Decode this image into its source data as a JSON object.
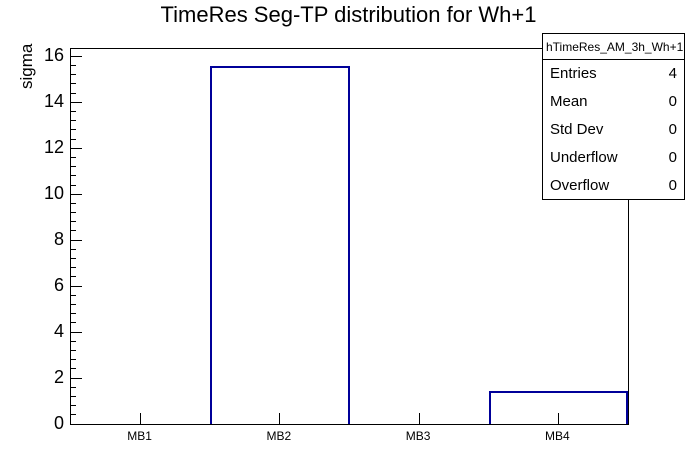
{
  "colors": {
    "bar_line": "#000099",
    "axis": "#000000",
    "background": "#ffffff"
  },
  "stats_box": {
    "header": "hTimeRes_AM_3h_Wh+1",
    "rows": [
      {
        "label": "Entries",
        "value": "4"
      },
      {
        "label": "Mean",
        "value": "0"
      },
      {
        "label": "Std Dev",
        "value": "0"
      },
      {
        "label": "Underflow",
        "value": "0"
      },
      {
        "label": "Overflow",
        "value": "0"
      }
    ]
  },
  "chart_data": {
    "type": "bar",
    "title": "TimeRes Seg-TP distribution for Wh+1",
    "categories": [
      "MB1",
      "MB2",
      "MB3",
      "MB4"
    ],
    "values": [
      0,
      15.6,
      0,
      1.43
    ],
    "xlabel": "",
    "ylabel": "sigma",
    "ylim": [
      0,
      16.32
    ],
    "y_major_ticks": [
      0,
      2,
      4,
      6,
      8,
      10,
      12,
      14,
      16
    ],
    "y_minor_step": 0.4,
    "bar_style": "hollow-outline",
    "grid": false,
    "legend": false
  }
}
